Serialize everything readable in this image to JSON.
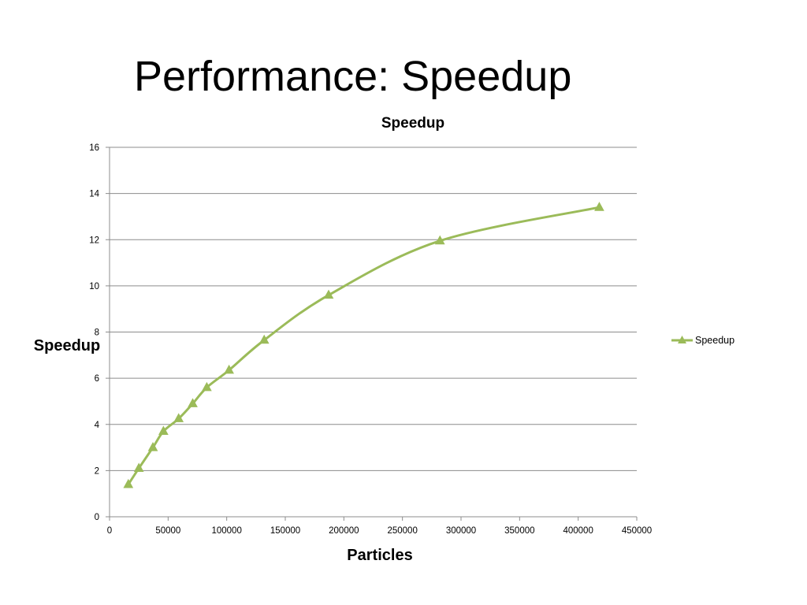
{
  "slide": {
    "title": "Performance: Speedup"
  },
  "colors": {
    "series": "#9BBB59",
    "grid": "#8C8C8C",
    "axis": "#8C8C8C"
  },
  "chart_data": {
    "type": "scatter",
    "title": "Speedup",
    "xlabel": "Particles",
    "ylabel": "Speedup",
    "xlim": [
      0,
      450000
    ],
    "ylim": [
      0,
      16
    ],
    "x_ticks": [
      0,
      50000,
      100000,
      150000,
      200000,
      250000,
      300000,
      350000,
      400000,
      450000
    ],
    "y_ticks": [
      0,
      2,
      4,
      6,
      8,
      10,
      12,
      14,
      16
    ],
    "grid": "horizontal",
    "legend": "right",
    "marker": "triangle",
    "smoothed_line": true,
    "series": [
      {
        "name": "Speedup",
        "x": [
          16000,
          25000,
          37000,
          46000,
          59000,
          71000,
          83000,
          102000,
          132000,
          187000,
          282000,
          418000
        ],
        "y": [
          1.4,
          2.1,
          3.0,
          3.7,
          4.25,
          4.9,
          5.6,
          6.35,
          7.65,
          9.6,
          11.95,
          13.4
        ]
      }
    ]
  }
}
